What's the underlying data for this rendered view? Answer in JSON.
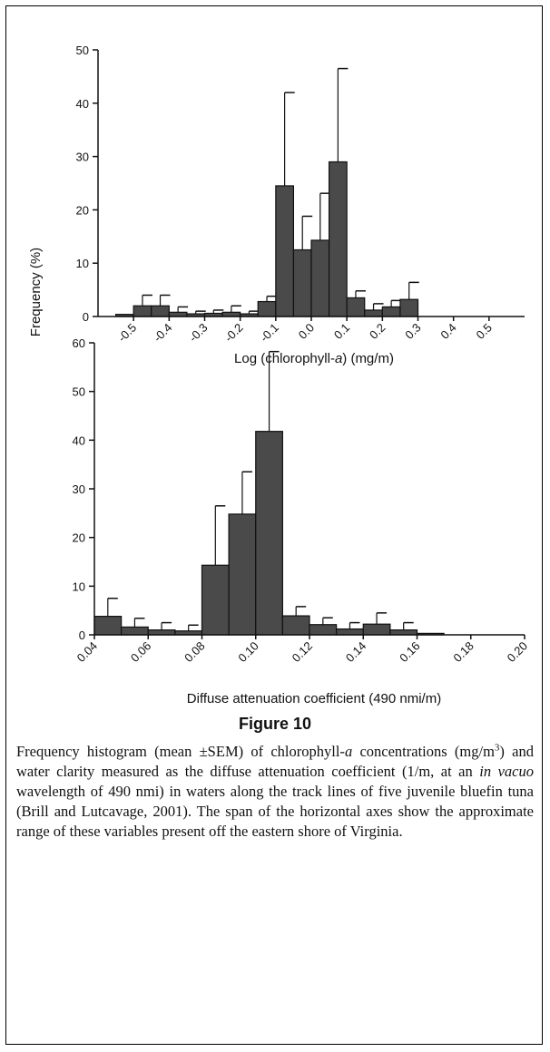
{
  "chart_data": [
    {
      "type": "bar",
      "xlabel_parts": [
        "Log (chlorophyll-",
        "a",
        ") (mg/m)"
      ],
      "ylabel": "Frequency (%)",
      "ylim": [
        0,
        50
      ],
      "yticks": [
        0,
        10,
        20,
        30,
        40,
        50
      ],
      "xlim": [
        -0.6,
        0.6
      ],
      "xticks": [
        "-0.5",
        "-0.4",
        "-0.3",
        "-0.2",
        "-0.1",
        "0.0",
        "0.1",
        "0.2",
        "0.3",
        "0.4",
        "0.5"
      ],
      "bin_width": 0.05,
      "bins": [
        {
          "center": -0.525,
          "value": 0.4,
          "error": 0
        },
        {
          "center": -0.475,
          "value": 2,
          "error": 2
        },
        {
          "center": -0.425,
          "value": 2,
          "error": 2
        },
        {
          "center": -0.375,
          "value": 0.8,
          "error": 1
        },
        {
          "center": -0.325,
          "value": 0.5,
          "error": 0.5
        },
        {
          "center": -0.275,
          "value": 0.6,
          "error": 0.6
        },
        {
          "center": -0.225,
          "value": 0.8,
          "error": 1.2
        },
        {
          "center": -0.175,
          "value": 0.5,
          "error": 0.5
        },
        {
          "center": -0.125,
          "value": 2.8,
          "error": 1
        },
        {
          "center": -0.075,
          "value": 24.5,
          "error": 17.5
        },
        {
          "center": -0.025,
          "value": 12.5,
          "error": 6.3
        },
        {
          "center": 0.025,
          "value": 14.3,
          "error": 8.8
        },
        {
          "center": 0.075,
          "value": 29,
          "error": 17.5
        },
        {
          "center": 0.125,
          "value": 3.5,
          "error": 1.3
        },
        {
          "center": 0.175,
          "value": 1.2,
          "error": 1.2
        },
        {
          "center": 0.225,
          "value": 1.8,
          "error": 1.2
        },
        {
          "center": 0.275,
          "value": 3.2,
          "error": 3.2
        }
      ]
    },
    {
      "type": "bar",
      "xlabel": "Diffuse attenuation coefficient (490 nmi/m)",
      "ylim": [
        0,
        60
      ],
      "yticks": [
        0,
        10,
        20,
        30,
        40,
        50,
        60
      ],
      "xlim": [
        0.04,
        0.2
      ],
      "xticks": [
        "0.04",
        "0.06",
        "0.08",
        "0.10",
        "0.12",
        "0.14",
        "0.16",
        "0.18",
        "0.20"
      ],
      "bin_width": 0.01,
      "bins": [
        {
          "center": 0.045,
          "value": 3.8,
          "error": 3.7
        },
        {
          "center": 0.055,
          "value": 1.6,
          "error": 1.8
        },
        {
          "center": 0.065,
          "value": 1,
          "error": 1.5
        },
        {
          "center": 0.075,
          "value": 0.8,
          "error": 1.2
        },
        {
          "center": 0.085,
          "value": 14.3,
          "error": 12.2
        },
        {
          "center": 0.095,
          "value": 24.8,
          "error": 8.7
        },
        {
          "center": 0.105,
          "value": 41.8,
          "error": 16.4
        },
        {
          "center": 0.115,
          "value": 3.9,
          "error": 1.9
        },
        {
          "center": 0.125,
          "value": 2.1,
          "error": 1.4
        },
        {
          "center": 0.135,
          "value": 1.2,
          "error": 1.3
        },
        {
          "center": 0.145,
          "value": 2.2,
          "error": 2.3
        },
        {
          "center": 0.155,
          "value": 1,
          "error": 1.5
        },
        {
          "center": 0.165,
          "value": 0.3,
          "error": 0
        }
      ]
    }
  ],
  "figure": {
    "title": "Figure 10",
    "caption_parts": [
      {
        "t": "Frequency histogram (mean ±SEM) of chlorophyll-"
      },
      {
        "t": "a",
        "i": true
      },
      {
        "t": " concentrations (mg/m"
      },
      {
        "t": "3",
        "sup": true
      },
      {
        "t": ") and water clarity measured as the diffuse attenuation coefficient (1/m, at an "
      },
      {
        "t": "in vacuo",
        "i": true
      },
      {
        "t": " wavelength of 490 nmi) in waters along the track lines of five juvenile bluefin tuna (Brill and Lutcavage, 2001). The span of the horizontal axes show the approximate range of these variables present off the eastern shore of Virginia."
      }
    ]
  },
  "colors": {
    "bar_fill": "#4a4a4a",
    "bar_stroke": "#111111",
    "axis": "#111111"
  }
}
